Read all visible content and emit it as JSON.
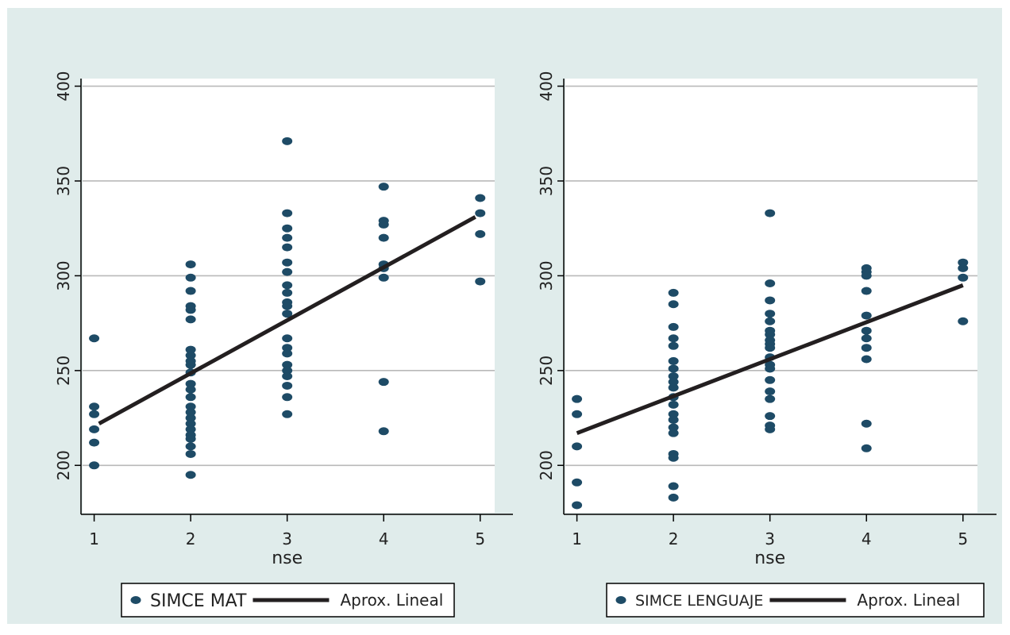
{
  "colors": {
    "outer_background": "#e0eceb",
    "plot_background": "#ffffff",
    "marker": "#1e4b66",
    "fit_line": "#231f20",
    "gridline": "#b9b9b9",
    "axis": "#000000"
  },
  "chart_data": [
    {
      "type": "scatter",
      "xlabel": "nse",
      "ylabel": "",
      "xticks": [
        "1",
        "2",
        "3",
        "4",
        "5"
      ],
      "yticks": [
        "200",
        "250",
        "300",
        "350",
        "400"
      ],
      "xlim": [
        0.88,
        5.15
      ],
      "ylim": [
        175,
        404
      ],
      "grid": true,
      "legend": {
        "placement": "bottom-center",
        "entries": [
          {
            "label": "SIMCE MAT",
            "kind": "marker"
          },
          {
            "label": "Aprox. Lineal",
            "kind": "line"
          }
        ]
      },
      "series": [
        {
          "name": "SIMCE MAT",
          "kind": "scatter",
          "points": [
            [
              1,
              267
            ],
            [
              1,
              231
            ],
            [
              1,
              227
            ],
            [
              1,
              219
            ],
            [
              1,
              212
            ],
            [
              1,
              200
            ],
            [
              2,
              306
            ],
            [
              2,
              299
            ],
            [
              2,
              292
            ],
            [
              2,
              284
            ],
            [
              2,
              282
            ],
            [
              2,
              277
            ],
            [
              2,
              261
            ],
            [
              2,
              258
            ],
            [
              2,
              255
            ],
            [
              2,
              253
            ],
            [
              2,
              249
            ],
            [
              2,
              243
            ],
            [
              2,
              240
            ],
            [
              2,
              236
            ],
            [
              2,
              231
            ],
            [
              2,
              228
            ],
            [
              2,
              225
            ],
            [
              2,
              222
            ],
            [
              2,
              219
            ],
            [
              2,
              216
            ],
            [
              2,
              214
            ],
            [
              2,
              210
            ],
            [
              2,
              206
            ],
            [
              2,
              195
            ],
            [
              3,
              371
            ],
            [
              3,
              333
            ],
            [
              3,
              325
            ],
            [
              3,
              320
            ],
            [
              3,
              315
            ],
            [
              3,
              307
            ],
            [
              3,
              302
            ],
            [
              3,
              295
            ],
            [
              3,
              291
            ],
            [
              3,
              286
            ],
            [
              3,
              284
            ],
            [
              3,
              280
            ],
            [
              3,
              267
            ],
            [
              3,
              262
            ],
            [
              3,
              259
            ],
            [
              3,
              253
            ],
            [
              3,
              250
            ],
            [
              3,
              247
            ],
            [
              3,
              242
            ],
            [
              3,
              236
            ],
            [
              3,
              227
            ],
            [
              4,
              347
            ],
            [
              4,
              329
            ],
            [
              4,
              327
            ],
            [
              4,
              320
            ],
            [
              4,
              306
            ],
            [
              4,
              304
            ],
            [
              4,
              299
            ],
            [
              4,
              244
            ],
            [
              4,
              218
            ],
            [
              5,
              341
            ],
            [
              5,
              333
            ],
            [
              5,
              322
            ],
            [
              5,
              297
            ]
          ]
        },
        {
          "name": "Aprox. Lineal",
          "kind": "line",
          "points": [
            [
              1.05,
              222
            ],
            [
              4.95,
              331
            ]
          ]
        }
      ]
    },
    {
      "type": "scatter",
      "xlabel": "nse",
      "ylabel": "",
      "xticks": [
        "1",
        "2",
        "3",
        "4",
        "5"
      ],
      "yticks": [
        "200",
        "250",
        "300",
        "350",
        "400"
      ],
      "xlim": [
        0.88,
        5.15
      ],
      "ylim": [
        175,
        404
      ],
      "grid": true,
      "legend": {
        "placement": "bottom-center",
        "entries": [
          {
            "label": "SIMCE LENGUAJE",
            "kind": "marker"
          },
          {
            "label": "Aprox. Lineal",
            "kind": "line"
          }
        ]
      },
      "series": [
        {
          "name": "SIMCE LENGUAJE",
          "kind": "scatter",
          "points": [
            [
              1,
              235
            ],
            [
              1,
              227
            ],
            [
              1,
              210
            ],
            [
              1,
              191
            ],
            [
              1,
              179
            ],
            [
              2,
              291
            ],
            [
              2,
              285
            ],
            [
              2,
              273
            ],
            [
              2,
              267
            ],
            [
              2,
              263
            ],
            [
              2,
              255
            ],
            [
              2,
              251
            ],
            [
              2,
              247
            ],
            [
              2,
              244
            ],
            [
              2,
              241
            ],
            [
              2,
              236
            ],
            [
              2,
              232
            ],
            [
              2,
              227
            ],
            [
              2,
              224
            ],
            [
              2,
              220
            ],
            [
              2,
              217
            ],
            [
              2,
              206
            ],
            [
              2,
              204
            ],
            [
              2,
              189
            ],
            [
              2,
              183
            ],
            [
              3,
              333
            ],
            [
              3,
              296
            ],
            [
              3,
              287
            ],
            [
              3,
              280
            ],
            [
              3,
              276
            ],
            [
              3,
              271
            ],
            [
              3,
              269
            ],
            [
              3,
              266
            ],
            [
              3,
              264
            ],
            [
              3,
              262
            ],
            [
              3,
              257
            ],
            [
              3,
              253
            ],
            [
              3,
              251
            ],
            [
              3,
              245
            ],
            [
              3,
              239
            ],
            [
              3,
              235
            ],
            [
              3,
              226
            ],
            [
              3,
              221
            ],
            [
              3,
              219
            ],
            [
              4,
              304
            ],
            [
              4,
              302
            ],
            [
              4,
              300
            ],
            [
              4,
              292
            ],
            [
              4,
              279
            ],
            [
              4,
              271
            ],
            [
              4,
              267
            ],
            [
              4,
              262
            ],
            [
              4,
              256
            ],
            [
              4,
              222
            ],
            [
              4,
              209
            ],
            [
              5,
              307
            ],
            [
              5,
              304
            ],
            [
              5,
              299
            ],
            [
              5,
              276
            ]
          ]
        },
        {
          "name": "Aprox. Lineal",
          "kind": "line",
          "points": [
            [
              1.0,
              217
            ],
            [
              5.0,
              295
            ]
          ]
        }
      ]
    }
  ]
}
